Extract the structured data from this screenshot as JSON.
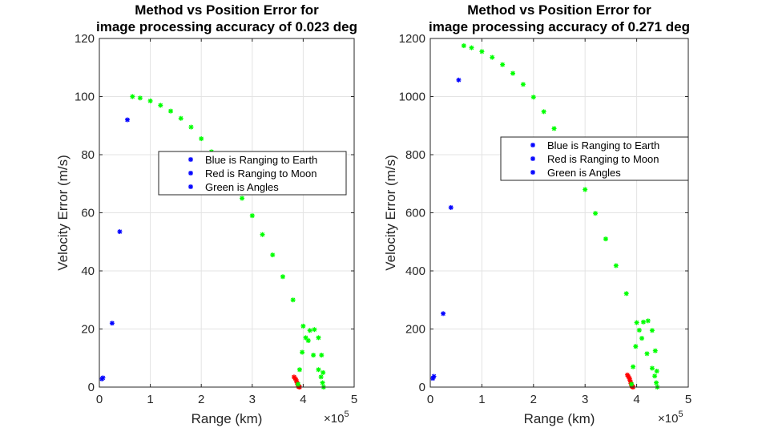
{
  "chart_data": [
    {
      "type": "scatter",
      "title": [
        "Method vs Position Error for",
        "image processing accuracy of 0.023 deg"
      ],
      "xlabel": "Range (km)",
      "ylabel": "Velocity Error (m/s)",
      "x_exponent_label": "×10",
      "x_exponent_power": "5",
      "xlim": [
        0,
        5
      ],
      "ylim": [
        0,
        120
      ],
      "xticks": [
        0,
        1,
        2,
        3,
        4,
        5
      ],
      "yticks": [
        0,
        20,
        40,
        60,
        80,
        100,
        120
      ],
      "grid": true,
      "legend_position": "upper-center-right",
      "legend": [
        {
          "label": "Blue is Ranging to Earth",
          "marker_color": "#0000ff"
        },
        {
          "label": "Red is Ranging to Moon",
          "marker_color": "#0000ff"
        },
        {
          "label": "Green is Angles",
          "marker_color": "#0000ff"
        }
      ],
      "series": [
        {
          "color": "#0000ff",
          "x": [
            0.05,
            0.07,
            0.25,
            0.4,
            0.55
          ],
          "y": [
            2.8,
            3.2,
            22,
            53.5,
            92
          ]
        },
        {
          "color": "#ff0000",
          "x": [
            3.82,
            3.84,
            3.86,
            3.87,
            3.88,
            3.89,
            3.9,
            3.91,
            3.92,
            3.93
          ],
          "y": [
            3.5,
            3.0,
            2.5,
            2.0,
            1.5,
            1.0,
            0.5,
            0.2,
            0.1,
            0.0
          ]
        },
        {
          "color": "#00ff00",
          "x": [
            0.65,
            0.8,
            1.0,
            1.2,
            1.4,
            1.6,
            1.8,
            2.0,
            2.2,
            2.4,
            2.6,
            2.8,
            3.0,
            3.2,
            3.4,
            3.6,
            3.8,
            4.0,
            4.1,
            4.2,
            4.3,
            4.35,
            4.38,
            4.4,
            4.39,
            4.36,
            4.3,
            4.22,
            4.13,
            4.05,
            3.98,
            3.93,
            3.9
          ],
          "y": [
            100,
            99.5,
            98.5,
            97,
            95,
            92.5,
            89.5,
            85.5,
            81,
            76,
            70.5,
            65,
            59,
            52.5,
            45.5,
            38,
            30,
            21,
            16,
            11,
            6,
            3.5,
            1.5,
            0,
            5,
            11,
            17,
            19.8,
            19.5,
            17,
            12,
            6,
            1
          ]
        }
      ]
    },
    {
      "type": "scatter",
      "title": [
        "Method vs Position Error for",
        "image processing accuracy of 0.271 deg"
      ],
      "xlabel": "Range (km)",
      "ylabel": "Velocity Error (m/s)",
      "x_exponent_label": "×10",
      "x_exponent_power": "5",
      "xlim": [
        0,
        5
      ],
      "ylim": [
        0,
        1200
      ],
      "xticks": [
        0,
        1,
        2,
        3,
        4,
        5
      ],
      "yticks": [
        0,
        200,
        400,
        600,
        800,
        1000,
        1200
      ],
      "grid": true,
      "legend_position": "upper-center-right",
      "legend": [
        {
          "label": "Blue is Ranging to Earth",
          "marker_color": "#0000ff"
        },
        {
          "label": "Red is Ranging to Moon",
          "marker_color": "#0000ff"
        },
        {
          "label": "Green is Angles",
          "marker_color": "#0000ff"
        }
      ],
      "series": [
        {
          "color": "#0000ff",
          "x": [
            0.05,
            0.07,
            0.25,
            0.4,
            0.55
          ],
          "y": [
            30,
            37,
            253,
            618,
            1057
          ]
        },
        {
          "color": "#ff0000",
          "x": [
            3.82,
            3.84,
            3.86,
            3.87,
            3.88,
            3.89,
            3.9,
            3.91,
            3.92,
            3.93
          ],
          "y": [
            42,
            36,
            30,
            24,
            18,
            12,
            6,
            3,
            1,
            0
          ]
        },
        {
          "color": "#00ff00",
          "x": [
            0.65,
            0.8,
            1.0,
            1.2,
            1.4,
            1.6,
            1.8,
            2.0,
            2.2,
            2.4,
            2.6,
            2.8,
            3.0,
            3.2,
            3.4,
            3.6,
            3.8,
            4.0,
            4.1,
            4.2,
            4.3,
            4.35,
            4.38,
            4.4,
            4.39,
            4.36,
            4.3,
            4.22,
            4.13,
            4.05,
            3.98,
            3.93,
            3.9
          ],
          "y": [
            1175,
            1168,
            1155,
            1135,
            1110,
            1080,
            1042,
            998,
            948,
            890,
            826,
            756,
            680,
            598,
            510,
            418,
            322,
            222,
            168,
            115,
            65,
            38,
            15,
            0,
            55,
            125,
            195,
            228,
            224,
            196,
            140,
            70,
            10
          ]
        }
      ]
    }
  ]
}
